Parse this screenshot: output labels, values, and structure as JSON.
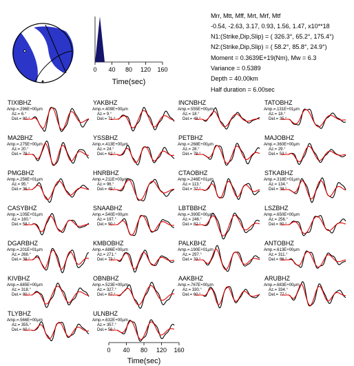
{
  "colors": {
    "observed": "#000000",
    "synthetic": "#e00000",
    "focal_compressional": "#2b35c8",
    "focal_dilatational": "#ffffff",
    "stf_fill": "#15156b"
  },
  "moment_tensor": {
    "header": "Mrr,  Mtt,  Mff,  Mrt,  Mrf,  Mtf",
    "values": "-0.54, -2.63,  3.17,  0.93,  1.56,  1.47, x10**18",
    "n1": "N1:(Strike,Dip,Slip) = ( 326.3°,  65.2°,  175.4°)",
    "n2": "N2:(Strike,Dip,Slip) = (  58.2°,  85.8°,   24.9°)",
    "moment": "Moment = 0.3639E+19(Nm), Mw = 6.3",
    "variance": "Variance  =    0.5389",
    "depth": "Depth  =    40.00km",
    "half_duration": "Half duration  =     6.00sec"
  },
  "stf_axis": {
    "ticks": [
      "0",
      "40",
      "80",
      "120",
      "160"
    ],
    "xlabel": "Time(sec)"
  },
  "time_axis": {
    "ticks": [
      "0",
      "40",
      "80",
      "120",
      "160"
    ],
    "xlabel": "Time(sec)"
  },
  "chart_data": {
    "type": "line",
    "title": "",
    "xlabel": "Time(sec)",
    "ylabel": "",
    "xlim": [
      0,
      160
    ],
    "series_names": [
      "observed",
      "synthetic"
    ],
    "panels": [
      {
        "station": "TIXIBHZ",
        "amp": "Amp.=.296E+00µm",
        "az": "Az.=  6.°",
        "del": "Del.=  80.°"
      },
      {
        "station": "YAKBHZ",
        "amp": "Amp.=.409E+00µm",
        "az": "Az.=  9.°",
        "del": "Del.=  71.°"
      },
      {
        "station": "INCNBHZ",
        "amp": "Amp.=.555E+00µm",
        "az": "Az.=  18.°",
        "del": "Del.=  48.°"
      },
      {
        "station": "TATOBHZ",
        "amp": "Amp.=.131E+01µm",
        "az": "Az.=  18.°",
        "del": "Del.=  35.°"
      },
      {
        "station": "MA2BHZ",
        "amp": "Amp.=.275E+00µm",
        "az": "Az.=  20.°",
        "del": "Del.=  79.°"
      },
      {
        "station": "YSSBHZ",
        "amp": "Amp.=.413E+00µm",
        "az": "Az.=  24.°",
        "del": "Del.=  62.°"
      },
      {
        "station": "PETBHZ",
        "amp": "Amp.=.268E+00µm",
        "az": "Az.=  28.°",
        "del": "Del.=  78.°"
      },
      {
        "station": "MAJOBHZ",
        "amp": "Amp.=.360E+00µm",
        "az": "Az.=  29.°",
        "del": "Del.=  53.°"
      },
      {
        "station": "PMGBHZ",
        "amp": "Amp.=.256E+01µm",
        "az": "Az.=  95.°",
        "del": "Del.=  36.°"
      },
      {
        "station": "HNRBHZ",
        "amp": "Amp.=.211E+00µm",
        "az": "Az.=  96.°",
        "del": "Del.=  49.°"
      },
      {
        "station": "CTAOBHZ",
        "amp": "Amp.=.246E+01µm",
        "az": "Az.=  113.°",
        "del": "Del.=  37.°"
      },
      {
        "station": "STKABHZ",
        "amp": "Amp.=.318E+01µm",
        "az": "Az.=  134.°",
        "del": "Del.=  38.°"
      },
      {
        "station": "CASYBHZ",
        "amp": "Amp.=.105E+01µm",
        "az": "Az.=  180.°",
        "del": "Del.=  58.°"
      },
      {
        "station": "SNAABHZ",
        "amp": "Amp.=.540E+00µm",
        "az": "Az.=  197.°",
        "del": "Del.=  90.°"
      },
      {
        "station": "LBTBBHZ",
        "amp": "Amp.=.390E+00µm",
        "az": "Az.=  246.°",
        "del": "Del.=  82.°"
      },
      {
        "station": "LSZBHZ",
        "amp": "Amp.=.650E+00µm",
        "az": "Az.=  256.°",
        "del": "Del.=  80.°"
      },
      {
        "station": "DGARBHZ",
        "amp": "Amp.=.201E+01µm",
        "az": "Az.=  268.°",
        "del": "Del.=  38.°"
      },
      {
        "station": "KMBOBHZ",
        "amp": "Amp.=.686E+00µm",
        "az": "Az.=  271.°",
        "del": "Del.=  73.°"
      },
      {
        "station": "PALKBHZ",
        "amp": "Amp.=.190E+01µm",
        "az": "Az.=  297.°",
        "del": "Del.=  33.°"
      },
      {
        "station": "ANTOBHZ",
        "amp": "Amp.=.613E+00µm",
        "az": "Az.=  311.°",
        "del": "Del.=  86.°"
      },
      {
        "station": "KIVBHZ",
        "amp": "Amp.=.685E+00µm",
        "az": "Az.=  318.°",
        "del": "Del.=  80.°"
      },
      {
        "station": "OBNBHZ",
        "amp": "Amp.=.523E+00µm",
        "az": "Az.=  327.°",
        "del": "Del.=  87.°"
      },
      {
        "station": "AAKBHZ",
        "amp": "Amp.=.767E+00µm",
        "az": "Az.=  330.°",
        "del": "Del.=  60.°"
      },
      {
        "station": "ARUBHZ",
        "amp": "Amp.=.683E+00µm",
        "az": "Az.=  334.°",
        "del": "Del.=  77.°"
      },
      {
        "station": "TLYBHZ",
        "amp": "Amp.=.566E+00µm",
        "az": "Az.=  355.°",
        "del": "Del.=  60.°"
      },
      {
        "station": "ULNBHZ",
        "amp": "Amp.=.632E+00µm",
        "az": "Az.=  357.°",
        "del": "Del.=  56.°"
      }
    ]
  }
}
